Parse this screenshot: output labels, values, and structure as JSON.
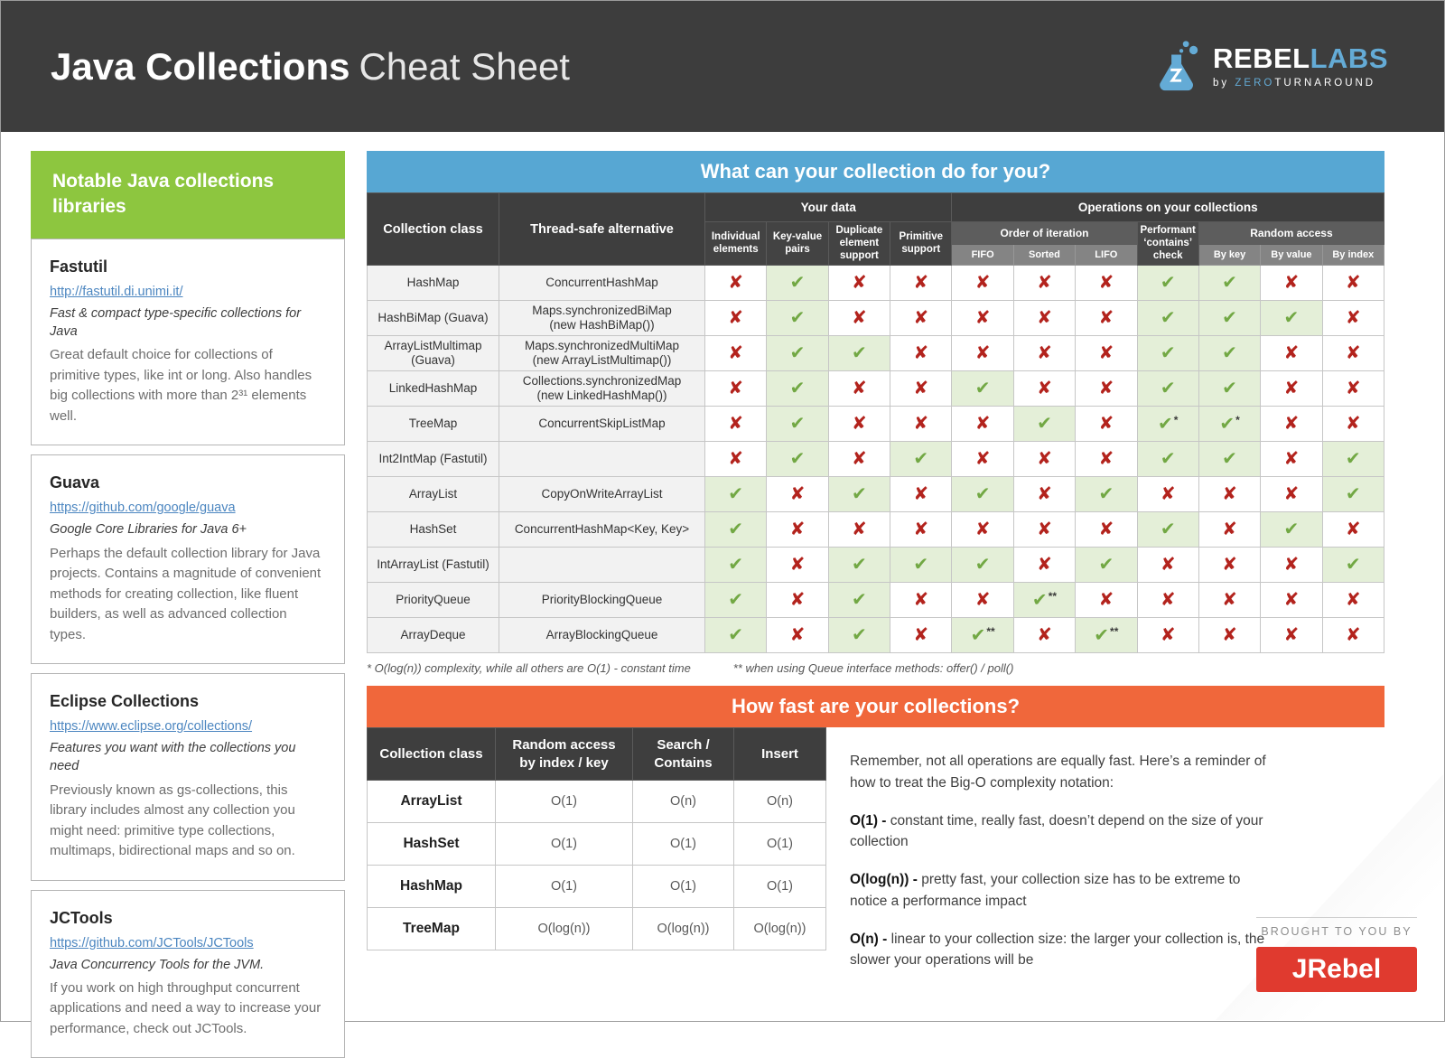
{
  "header": {
    "title_bold": "Java Collections",
    "title_light": "Cheat Sheet",
    "logo": {
      "brand_primary": "REBEL",
      "brand_secondary": "LABS",
      "byline_prefix": "by ",
      "byline_highlight": "ZERO",
      "byline_rest": "TURNAROUND"
    }
  },
  "sidebar": {
    "title": "Notable Java collections libraries",
    "sections": [
      {
        "name": "Fastutil",
        "url": "http://fastutil.di.unimi.it/",
        "tagline": "Fast & compact type-specific collections for Java",
        "description": "Great default choice for collections of primitive types, like int or long. Also handles big collections with more than 2³¹ elements well."
      },
      {
        "name": "Guava",
        "url": "https://github.com/google/guava",
        "tagline": "Google Core Libraries for Java 6+",
        "description": "Perhaps the default collection library for Java projects. Contains a magnitude of convenient methods for creating collection, like fluent builders, as well as advanced collection types."
      },
      {
        "name": "Eclipse Collections",
        "url": "https://www.eclipse.org/collections/",
        "tagline": "Features you want with the collections you need",
        "description": "Previously known as gs-collections, this library includes almost any collection you might need: primitive type collections, multimaps, bidirectional maps and so on."
      },
      {
        "name": "JCTools",
        "url": "https://github.com/JCTools/JCTools",
        "tagline": "Java Concurrency Tools for the JVM.",
        "description": "If you work on high throughput concurrent applications and need a way to increase your performance, check out JCTools."
      }
    ]
  },
  "matrix": {
    "title": "What can your collection do for you?",
    "columns": {
      "collection": "Collection class",
      "thread_safe": "Thread-safe alternative",
      "your_data": "Your data",
      "operations": "Operations on your collections",
      "data_cols": [
        "Individual elements",
        "Key-value pairs",
        "Duplicate element support",
        "Primitive support"
      ],
      "order_group": "Order of iteration",
      "order_cols": [
        "FIFO",
        "Sorted",
        "LIFO"
      ],
      "contains": "Performant ‘contains’ check",
      "random_group": "Random access",
      "random_cols": [
        "By key",
        "By value",
        "By index"
      ]
    },
    "legend": {
      "yes": "✔",
      "no": "✘"
    },
    "rows": [
      {
        "collection": "HashMap",
        "thread_safe": "ConcurrentHashMap",
        "marks": [
          "no",
          "yes",
          "no",
          "no",
          "no",
          "no",
          "no",
          "yes",
          "yes",
          "no",
          "no"
        ]
      },
      {
        "collection": "HashBiMap (Guava)",
        "thread_safe": "Maps.synchronizedBiMap\n(new HashBiMap())",
        "marks": [
          "no",
          "yes",
          "no",
          "no",
          "no",
          "no",
          "no",
          "yes",
          "yes",
          "yes",
          "no"
        ]
      },
      {
        "collection": "ArrayListMultimap (Guava)",
        "thread_safe": "Maps.synchronizedMultiMap\n(new ArrayListMultimap())",
        "marks": [
          "no",
          "yes",
          "yes",
          "no",
          "no",
          "no",
          "no",
          "yes",
          "yes",
          "no",
          "no"
        ]
      },
      {
        "collection": "LinkedHashMap",
        "thread_safe": "Collections.synchronizedMap\n(new LinkedHashMap())",
        "marks": [
          "no",
          "yes",
          "no",
          "no",
          "yes",
          "no",
          "no",
          "yes",
          "yes",
          "no",
          "no"
        ]
      },
      {
        "collection": "TreeMap",
        "thread_safe": "ConcurrentSkipListMap",
        "marks": [
          "no",
          "yes",
          "no",
          "no",
          "no",
          "yes",
          "no",
          "yes*",
          "yes*",
          "no",
          "no"
        ]
      },
      {
        "collection": "Int2IntMap (Fastutil)",
        "thread_safe": "",
        "marks": [
          "no",
          "yes",
          "no",
          "yes",
          "no",
          "no",
          "no",
          "yes",
          "yes",
          "no",
          "yes"
        ]
      },
      {
        "collection": "ArrayList",
        "thread_safe": "CopyOnWriteArrayList",
        "marks": [
          "yes",
          "no",
          "yes",
          "no",
          "yes",
          "no",
          "yes",
          "no",
          "no",
          "no",
          "yes"
        ]
      },
      {
        "collection": "HashSet",
        "thread_safe": "ConcurrentHashMap<Key, Key>",
        "marks": [
          "yes",
          "no",
          "no",
          "no",
          "no",
          "no",
          "no",
          "yes",
          "no",
          "yes",
          "no"
        ]
      },
      {
        "collection": "IntArrayList (Fastutil)",
        "thread_safe": "",
        "marks": [
          "yes",
          "no",
          "yes",
          "yes",
          "yes",
          "no",
          "yes",
          "no",
          "no",
          "no",
          "yes"
        ]
      },
      {
        "collection": "PriorityQueue",
        "thread_safe": "PriorityBlockingQueue",
        "marks": [
          "yes",
          "no",
          "yes",
          "no",
          "no",
          "yes**",
          "no",
          "no",
          "no",
          "no",
          "no"
        ]
      },
      {
        "collection": "ArrayDeque",
        "thread_safe": "ArrayBlockingQueue",
        "marks": [
          "yes",
          "no",
          "yes",
          "no",
          "yes**",
          "no",
          "yes**",
          "no",
          "no",
          "no",
          "no"
        ]
      }
    ],
    "footnotes": [
      "* O(log(n)) complexity, while all others are O(1) - constant time",
      "** when using Queue interface methods: offer() / poll()"
    ]
  },
  "speed": {
    "title": "How fast are your collections?",
    "headers": [
      "Collection class",
      "Random access\nby index / key",
      "Search /\nContains",
      "Insert"
    ],
    "rows": [
      {
        "collection": "ArrayList",
        "values": [
          "O(1)",
          "O(n)",
          "O(n)"
        ]
      },
      {
        "collection": "HashSet",
        "values": [
          "O(1)",
          "O(1)",
          "O(1)"
        ]
      },
      {
        "collection": "HashMap",
        "values": [
          "O(1)",
          "O(1)",
          "O(1)"
        ]
      },
      {
        "collection": "TreeMap",
        "values": [
          "O(log(n))",
          "O(log(n))",
          "O(log(n))"
        ]
      }
    ],
    "intro": "Remember, not all operations are equally fast. Here’s a reminder of how to treat the Big-O complexity notation:",
    "notes": [
      {
        "term": "O(1) -",
        "text": "constant time, really fast, doesn’t depend on the size of your collection"
      },
      {
        "term": "O(log(n)) -",
        "text": "pretty fast, your collection size has to be extreme to notice a performance impact"
      },
      {
        "term": "O(n) -",
        "text": "linear to your collection size: the larger your collection is, the slower your operations will be"
      }
    ]
  },
  "footer": {
    "brought_by": "BROUGHT TO YOU BY",
    "jrebel": "JRebel"
  },
  "colors": {
    "header_dark": "#3d3d3d",
    "green": "#8dc63f",
    "blue": "#57a7d3",
    "orange": "#f0673b",
    "check_green": "#72a844",
    "check_bg": "#e4efd8",
    "cross_red": "#b3231d",
    "jrebel_red": "#e03a2f"
  }
}
